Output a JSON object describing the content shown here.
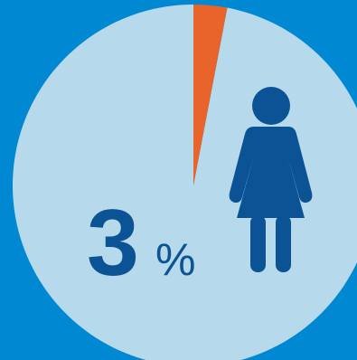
{
  "colors": {
    "background": "#0089D2",
    "pie_base": "#B6D9EC",
    "highlight": "#E8642A",
    "text_dark": "#0B5394",
    "figure": "#0B5394"
  },
  "icon": "woman-icon",
  "value_text": {
    "number": "3",
    "percent_sign": "%"
  },
  "chart_data": {
    "type": "pie",
    "slices": [
      {
        "value": 3,
        "color": "#E8642A"
      },
      {
        "value": 97,
        "color": "#B6D9EC"
      }
    ],
    "title": "",
    "legend": "none"
  }
}
